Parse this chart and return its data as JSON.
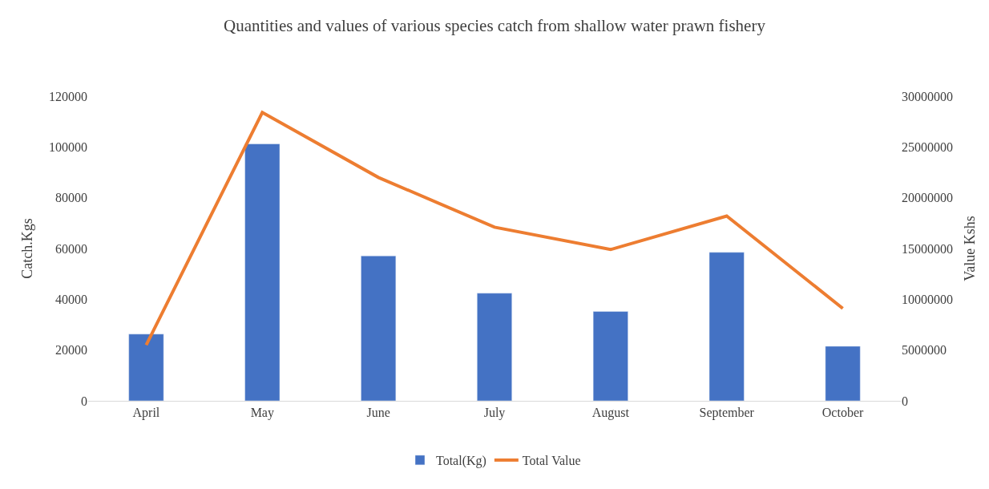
{
  "chart_data": {
    "type": "bar",
    "title": "Quantities and values of various species catch from shallow water prawn fishery",
    "ylabel": "Catch.Kgs",
    "y2label": "Value Kshs",
    "categories": [
      "April",
      "May",
      "June",
      "July",
      "August",
      "September",
      "October"
    ],
    "series": [
      {
        "name": "Total(Kg)",
        "color": "#4472c4",
        "values": [
          26300,
          101200,
          57100,
          42400,
          35200,
          58500,
          21500
        ]
      },
      {
        "name": "Total Value",
        "type": "line",
        "axis": "y2",
        "color": "#ed7d31",
        "values": [
          5500000,
          28400000,
          22000000,
          17100000,
          14900000,
          18200000,
          9100000
        ]
      }
    ],
    "ylim": [
      0,
      120000
    ],
    "yticks": [
      0,
      20000,
      40000,
      60000,
      80000,
      100000,
      120000
    ],
    "y2lim": [
      0,
      30000000
    ],
    "y2ticks": [
      0,
      5000000,
      10000000,
      15000000,
      20000000,
      25000000,
      30000000
    ],
    "legend": "bottom",
    "marker": "none",
    "line_style": "solid"
  }
}
